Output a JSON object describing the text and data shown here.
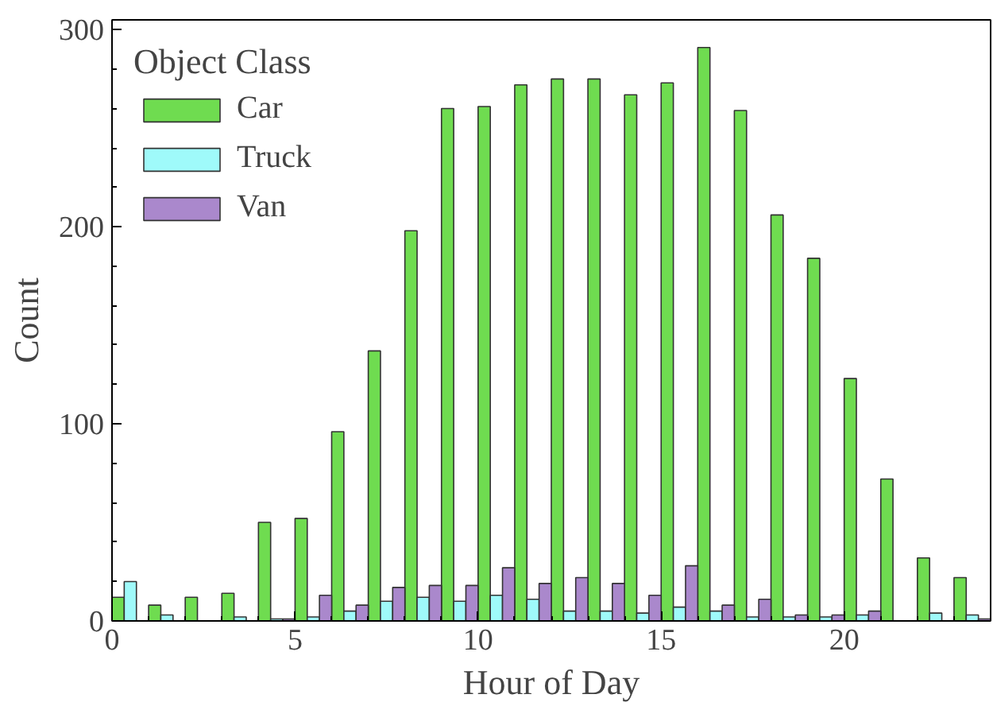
{
  "chart_data": {
    "type": "bar",
    "xlabel": "Hour of Day",
    "ylabel": "Count",
    "legend_title": "Object Class",
    "legend": "top left",
    "grid": false,
    "x": [
      0.5,
      1.5,
      2.5,
      3.5,
      4.5,
      5.5,
      6.5,
      7.5,
      8.5,
      9.5,
      10.5,
      11.5,
      12.5,
      13.5,
      14.5,
      15.5,
      16.5,
      17.5,
      18.5,
      19.5,
      20.5,
      21.5,
      22.5,
      23.5
    ],
    "series": [
      {
        "name": "Car",
        "color": "#6fdc50",
        "values": [
          12,
          8,
          12,
          14,
          50,
          52,
          96,
          137,
          198,
          260,
          261,
          272,
          275,
          275,
          267,
          273,
          291,
          259,
          206,
          184,
          123,
          72,
          32,
          22
        ]
      },
      {
        "name": "Truck",
        "color": "#9ffafa",
        "values": [
          20,
          3,
          null,
          2,
          1,
          2,
          5,
          10,
          12,
          10,
          13,
          11,
          5,
          5,
          4,
          7,
          5,
          2,
          2,
          2,
          3,
          null,
          4,
          3
        ]
      },
      {
        "name": "Van",
        "color": "#aa88cc",
        "values": [
          null,
          null,
          null,
          null,
          1,
          13,
          8,
          17,
          18,
          18,
          27,
          19,
          22,
          19,
          13,
          28,
          8,
          11,
          3,
          3,
          5,
          null,
          null,
          1
        ]
      }
    ],
    "xlim": [
      0,
      24
    ],
    "ylim": [
      0,
      305
    ],
    "xticks": [
      0,
      5,
      10,
      15,
      20
    ],
    "yticks": [
      0,
      100,
      200,
      300
    ]
  }
}
